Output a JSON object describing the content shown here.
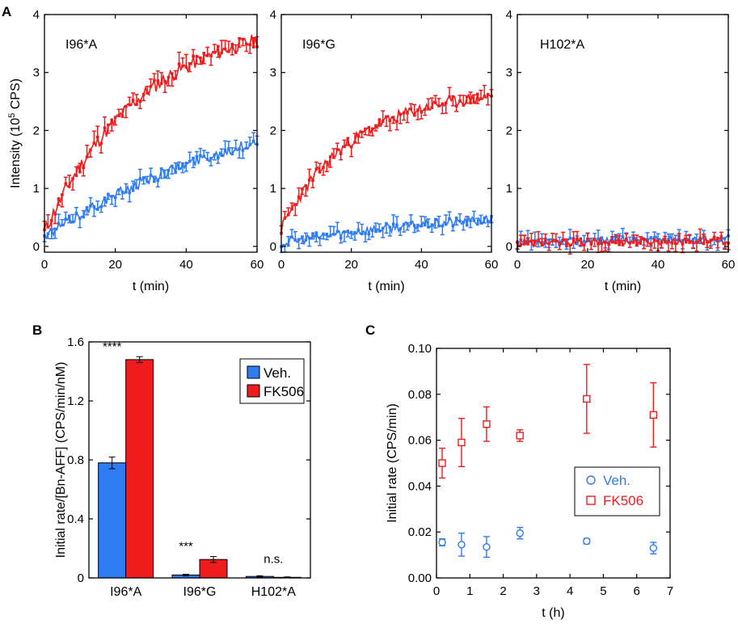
{
  "panels": {
    "A": "A",
    "B": "B",
    "C": "C"
  },
  "colors": {
    "veh": "#2f7bf2",
    "fk506": "#ee1c1c",
    "axis": "#000000"
  },
  "chart_data": [
    {
      "id": "A1",
      "type": "line",
      "title": "I96*A",
      "xlabel": "t (min)",
      "ylabel_main": "Intensity (10",
      "ylabel_sup": "5",
      "ylabel_tail": " CPS)",
      "xlim": [
        0,
        60
      ],
      "ylim": [
        -0.1,
        4
      ],
      "xticks": [
        0,
        20,
        40,
        60
      ],
      "yticks": [
        0,
        1,
        2,
        3,
        4
      ],
      "series": [
        {
          "name": "FK506",
          "color": "#ee1c1c",
          "amax": 3.75,
          "tau": 28,
          "start": 0.25,
          "noise": 0.12,
          "err": 0.17
        },
        {
          "name": "Veh.",
          "color": "#2f7bf2",
          "amax": 2.6,
          "tau": 60,
          "start": 0.15,
          "noise": 0.09,
          "err": 0.13
        }
      ]
    },
    {
      "id": "A2",
      "type": "line",
      "title": "I96*G",
      "xlabel": "t (min)",
      "xlim": [
        0,
        60
      ],
      "ylim": [
        -0.1,
        4
      ],
      "xticks": [
        0,
        20,
        40,
        60
      ],
      "yticks": [
        0,
        1,
        2,
        3,
        4
      ],
      "series": [
        {
          "name": "FK506",
          "color": "#ee1c1c",
          "amax": 2.4,
          "tau": 20,
          "start": 0.3,
          "noise": 0.1,
          "err": 0.15
        },
        {
          "name": "Veh.",
          "color": "#2f7bf2",
          "amax": 0.55,
          "tau": 45,
          "start": 0.05,
          "noise": 0.08,
          "err": 0.13
        }
      ]
    },
    {
      "id": "A3",
      "type": "line",
      "title": "H102*A",
      "xlabel": "t (min)",
      "xlim": [
        0,
        60
      ],
      "ylim": [
        -0.1,
        4
      ],
      "xticks": [
        0,
        20,
        40,
        60
      ],
      "yticks": [
        0,
        1,
        2,
        3,
        4
      ],
      "series": [
        {
          "name": "Veh.",
          "color": "#2f7bf2",
          "amax": 0.1,
          "tau": 30,
          "start": 0.05,
          "noise": 0.06,
          "err": 0.13
        },
        {
          "name": "FK506",
          "color": "#ee1c1c",
          "amax": 0.05,
          "tau": 30,
          "start": 0.05,
          "noise": 0.06,
          "err": 0.13
        }
      ]
    },
    {
      "id": "B",
      "type": "bar",
      "ylabel": "Initial rate/[Bn-AFF] (CPS/min/nM)",
      "categories": [
        "I96*A",
        "I96*G",
        "H102*A"
      ],
      "ylim": [
        0,
        1.6
      ],
      "yticks": [
        "0",
        "0.4",
        "0.8",
        "1.2",
        "1.6"
      ],
      "ytick_values": [
        0,
        0.4,
        0.8,
        1.2,
        1.6
      ],
      "series": [
        {
          "name": "Veh.",
          "color": "#2f7bf2",
          "values": [
            0.78,
            0.02,
            0.01
          ],
          "errors": [
            0.04,
            0.005,
            0.005
          ]
        },
        {
          "name": "FK506",
          "color": "#ee1c1c",
          "values": [
            1.48,
            0.125,
            0.004
          ],
          "errors": [
            0.02,
            0.02,
            0.003
          ]
        }
      ],
      "annotations": [
        "****",
        "***",
        "n.s."
      ],
      "legend": [
        "Veh.",
        "FK506"
      ]
    },
    {
      "id": "C",
      "type": "scatter",
      "xlabel": "t (h)",
      "ylabel": "Initial rate (CPS/min)",
      "xlim": [
        0,
        7
      ],
      "ylim": [
        0,
        0.1
      ],
      "xticks": [
        0,
        1,
        2,
        3,
        4,
        5,
        6,
        7
      ],
      "yticks": [
        "0.00",
        "0.02",
        "0.04",
        "0.06",
        "0.08",
        "0.10"
      ],
      "ytick_values": [
        0,
        0.02,
        0.04,
        0.06,
        0.08,
        0.1
      ],
      "series": [
        {
          "name": "Veh.",
          "color": "#2f7bf2",
          "marker": "circle",
          "x": [
            0.17,
            0.75,
            1.5,
            2.5,
            4.5,
            6.5
          ],
          "y": [
            0.0155,
            0.0145,
            0.0135,
            0.0195,
            0.016,
            0.013
          ],
          "err": [
            0.0015,
            0.005,
            0.0045,
            0.0025,
            0.0012,
            0.0025
          ]
        },
        {
          "name": "FK506",
          "color": "#ee1c1c",
          "marker": "square",
          "x": [
            0.17,
            0.75,
            1.5,
            2.5,
            4.5,
            6.5
          ],
          "y": [
            0.05,
            0.059,
            0.067,
            0.062,
            0.078,
            0.071
          ],
          "err": [
            0.0065,
            0.0105,
            0.0075,
            0.0025,
            0.015,
            0.014
          ]
        }
      ],
      "legend": [
        "Veh.",
        "FK506"
      ]
    }
  ]
}
